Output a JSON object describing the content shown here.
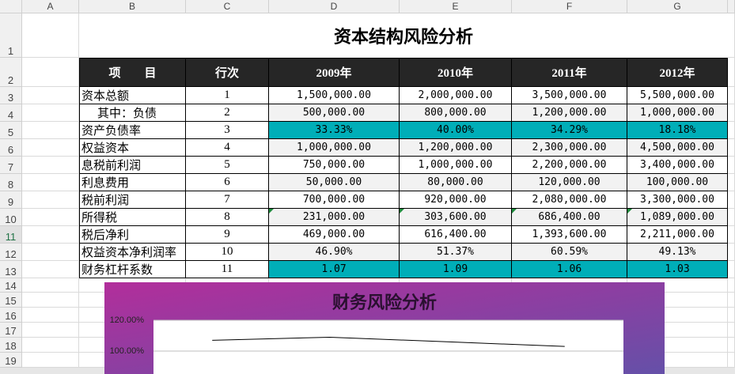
{
  "column_headers": [
    "A",
    "B",
    "C",
    "D",
    "E",
    "F",
    "G"
  ],
  "row_headers": [
    "1",
    "2",
    "3",
    "4",
    "5",
    "6",
    "7",
    "8",
    "9",
    "10",
    "11",
    "12",
    "13",
    "14",
    "15",
    "16",
    "17",
    "18",
    "19"
  ],
  "sheet": {
    "title": "资本结构风险分析",
    "header": [
      "项　　目",
      "行次",
      "2009年",
      "2010年",
      "2011年",
      "2012年"
    ],
    "rows": [
      [
        "资本总额",
        "1",
        "1,500,000.00",
        "2,000,000.00",
        "3,500,000.00",
        "5,500,000.00"
      ],
      [
        "其中：负债",
        "2",
        "500,000.00",
        "800,000.00",
        "1,200,000.00",
        "1,000,000.00"
      ],
      [
        "资产负债率",
        "3",
        "33.33%",
        "40.00%",
        "34.29%",
        "18.18%"
      ],
      [
        "权益资本",
        "4",
        "1,000,000.00",
        "1,200,000.00",
        "2,300,000.00",
        "4,500,000.00"
      ],
      [
        "息税前利润",
        "5",
        "750,000.00",
        "1,000,000.00",
        "2,200,000.00",
        "3,400,000.00"
      ],
      [
        "利息费用",
        "6",
        "50,000.00",
        "80,000.00",
        "120,000.00",
        "100,000.00"
      ],
      [
        "税前利润",
        "7",
        "700,000.00",
        "920,000.00",
        "2,080,000.00",
        "3,300,000.00"
      ],
      [
        "所得税",
        "8",
        "231,000.00",
        "303,600.00",
        "686,400.00",
        "1,089,000.00"
      ],
      [
        "税后净利",
        "9",
        "469,000.00",
        "616,400.00",
        "1,393,600.00",
        "2,211,000.00"
      ],
      [
        "权益资本净利润率",
        "10",
        "46.90%",
        "51.37%",
        "60.59%",
        "49.13%"
      ],
      [
        "财务杠杆系数",
        "11",
        "1.07",
        "1.09",
        "1.06",
        "1.03"
      ]
    ]
  },
  "chart_data": {
    "type": "line",
    "title": "财务风险分析",
    "series": [
      {
        "color": "#000000",
        "values": [
          1.07,
          1.09,
          1.06,
          1.03
        ]
      }
    ],
    "ylim": [
      1,
      1.2
    ],
    "yticks": [
      {
        "value": 1.2,
        "label": "120.00%"
      },
      {
        "value": 1,
        "label": "100.00%"
      }
    ],
    "grid": true
  }
}
